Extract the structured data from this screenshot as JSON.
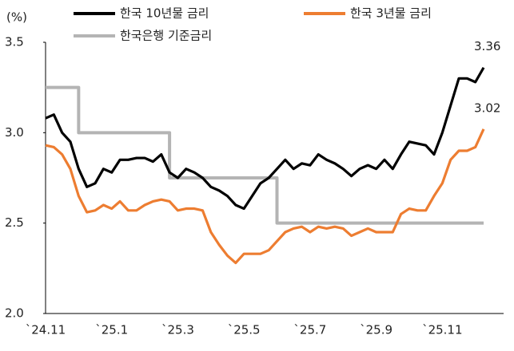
{
  "chart_data": {
    "type": "line",
    "ylabel": "(%)",
    "categories": [
      "`24.11",
      null,
      null,
      null,
      null,
      null,
      null,
      null,
      "`25.1",
      null,
      null,
      null,
      null,
      null,
      null,
      null,
      "`25.3",
      null,
      null,
      null,
      null,
      null,
      null,
      null,
      "`25.5",
      null,
      null,
      null,
      null,
      null,
      null,
      null,
      "`25.7",
      null,
      null,
      null,
      null,
      null,
      null,
      null,
      "`25.9",
      null,
      null,
      null,
      null,
      null,
      null,
      null,
      "`25.11",
      null,
      null,
      null,
      null,
      null
    ],
    "series": [
      {
        "name": "한국 10년물 금리",
        "color": "#000000",
        "label_last": true,
        "values": [
          3.08,
          3.1,
          3.0,
          2.95,
          2.8,
          2.7,
          2.72,
          2.8,
          2.78,
          2.85,
          2.85,
          2.86,
          2.86,
          2.84,
          2.88,
          2.78,
          2.75,
          2.8,
          2.78,
          2.75,
          2.7,
          2.68,
          2.65,
          2.6,
          2.58,
          2.65,
          2.72,
          2.75,
          2.8,
          2.85,
          2.8,
          2.83,
          2.82,
          2.88,
          2.85,
          2.83,
          2.8,
          2.76,
          2.8,
          2.82,
          2.8,
          2.85,
          2.8,
          2.88,
          2.95,
          2.94,
          2.93,
          2.88,
          3.0,
          3.15,
          3.3,
          3.3,
          3.28,
          3.36
        ]
      },
      {
        "name": "한국 3년물 금리",
        "color": "#ed7d31",
        "label_last": true,
        "values": [
          2.93,
          2.92,
          2.88,
          2.8,
          2.65,
          2.56,
          2.57,
          2.6,
          2.58,
          2.62,
          2.57,
          2.57,
          2.6,
          2.62,
          2.63,
          2.62,
          2.57,
          2.58,
          2.58,
          2.57,
          2.45,
          2.38,
          2.32,
          2.28,
          2.33,
          2.33,
          2.33,
          2.35,
          2.4,
          2.45,
          2.47,
          2.48,
          2.45,
          2.48,
          2.47,
          2.48,
          2.47,
          2.43,
          2.45,
          2.47,
          2.45,
          2.45,
          2.45,
          2.55,
          2.58,
          2.57,
          2.57,
          2.65,
          2.72,
          2.85,
          2.9,
          2.9,
          2.92,
          3.02
        ]
      },
      {
        "name": "한국은행 기준금리",
        "color": "#b4b4b4",
        "step": true,
        "values": [
          3.25,
          3.25,
          3.25,
          3.25,
          3.0,
          3.0,
          3.0,
          3.0,
          3.0,
          3.0,
          3.0,
          3.0,
          3.0,
          3.0,
          3.0,
          2.75,
          2.75,
          2.75,
          2.75,
          2.75,
          2.75,
          2.75,
          2.75,
          2.75,
          2.75,
          2.75,
          2.75,
          2.75,
          2.5,
          2.5,
          2.5,
          2.5,
          2.5,
          2.5,
          2.5,
          2.5,
          2.5,
          2.5,
          2.5,
          2.5,
          2.5,
          2.5,
          2.5,
          2.5,
          2.5,
          2.5,
          2.5,
          2.5,
          2.5,
          2.5,
          2.5,
          2.5,
          2.5,
          2.5
        ]
      }
    ],
    "ylim": [
      2.0,
      3.5
    ],
    "yticks": [
      {
        "value": 2,
        "label": "2.0"
      },
      2.5,
      {
        "value": 3,
        "label": "3.0"
      },
      3.5
    ],
    "grid": false,
    "legend": "top"
  }
}
